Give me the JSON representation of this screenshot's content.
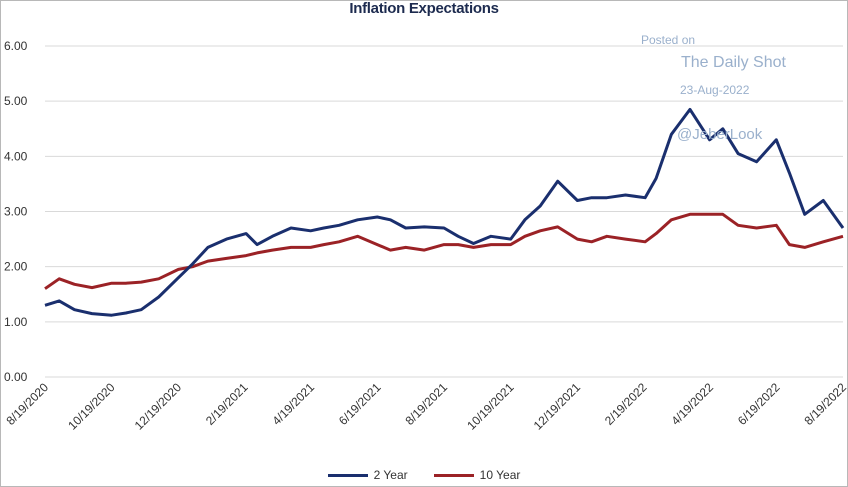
{
  "chart_data": {
    "type": "line",
    "title": "Inflation Expectations",
    "xlabel": "",
    "ylabel": "",
    "ylim": [
      0,
      6
    ],
    "yticks": [
      "0.00",
      "1.00",
      "2.00",
      "3.00",
      "4.00",
      "5.00",
      "6.00"
    ],
    "xticks": [
      "8/19/2020",
      "10/19/2020",
      "12/19/2020",
      "2/19/2021",
      "4/19/2021",
      "6/19/2021",
      "8/19/2021",
      "10/19/2021",
      "12/19/2021",
      "2/19/2022",
      "4/19/2022",
      "6/19/2022",
      "8/19/2022"
    ],
    "grid": true,
    "legend_position": "bottom",
    "series": [
      {
        "name": "2 Year",
        "color": "#1a2f6e",
        "points": [
          [
            "2020-08-19",
            1.3
          ],
          [
            "2020-09-01",
            1.38
          ],
          [
            "2020-09-15",
            1.22
          ],
          [
            "2020-10-01",
            1.15
          ],
          [
            "2020-10-19",
            1.12
          ],
          [
            "2020-11-01",
            1.16
          ],
          [
            "2020-11-15",
            1.22
          ],
          [
            "2020-12-01",
            1.45
          ],
          [
            "2020-12-19",
            1.8
          ],
          [
            "2021-01-01",
            2.05
          ],
          [
            "2021-01-15",
            2.35
          ],
          [
            "2021-02-01",
            2.5
          ],
          [
            "2021-02-19",
            2.6
          ],
          [
            "2021-03-01",
            2.4
          ],
          [
            "2021-03-15",
            2.55
          ],
          [
            "2021-04-01",
            2.7
          ],
          [
            "2021-04-19",
            2.65
          ],
          [
            "2021-05-01",
            2.7
          ],
          [
            "2021-05-15",
            2.75
          ],
          [
            "2021-06-01",
            2.85
          ],
          [
            "2021-06-19",
            2.9
          ],
          [
            "2021-07-01",
            2.85
          ],
          [
            "2021-07-15",
            2.7
          ],
          [
            "2021-08-01",
            2.72
          ],
          [
            "2021-08-19",
            2.7
          ],
          [
            "2021-09-01",
            2.55
          ],
          [
            "2021-09-15",
            2.42
          ],
          [
            "2021-10-01",
            2.55
          ],
          [
            "2021-10-19",
            2.5
          ],
          [
            "2021-11-01",
            2.85
          ],
          [
            "2021-11-15",
            3.1
          ],
          [
            "2021-12-01",
            3.55
          ],
          [
            "2021-12-19",
            3.2
          ],
          [
            "2022-01-01",
            3.25
          ],
          [
            "2022-01-15",
            3.25
          ],
          [
            "2022-02-01",
            3.3
          ],
          [
            "2022-02-19",
            3.25
          ],
          [
            "2022-03-01",
            3.6
          ],
          [
            "2022-03-15",
            4.4
          ],
          [
            "2022-04-01",
            4.85
          ],
          [
            "2022-04-19",
            4.3
          ],
          [
            "2022-05-01",
            4.5
          ],
          [
            "2022-05-15",
            4.05
          ],
          [
            "2022-06-01",
            3.9
          ],
          [
            "2022-06-19",
            4.3
          ],
          [
            "2022-07-01",
            3.7
          ],
          [
            "2022-07-15",
            2.95
          ],
          [
            "2022-08-01",
            3.2
          ],
          [
            "2022-08-19",
            2.7
          ]
        ]
      },
      {
        "name": "10 Year",
        "color": "#9b2226",
        "points": [
          [
            "2020-08-19",
            1.6
          ],
          [
            "2020-09-01",
            1.78
          ],
          [
            "2020-09-15",
            1.68
          ],
          [
            "2020-10-01",
            1.62
          ],
          [
            "2020-10-19",
            1.7
          ],
          [
            "2020-11-01",
            1.7
          ],
          [
            "2020-11-15",
            1.72
          ],
          [
            "2020-12-01",
            1.78
          ],
          [
            "2020-12-19",
            1.95
          ],
          [
            "2021-01-01",
            2.0
          ],
          [
            "2021-01-15",
            2.1
          ],
          [
            "2021-02-01",
            2.15
          ],
          [
            "2021-02-19",
            2.2
          ],
          [
            "2021-03-01",
            2.25
          ],
          [
            "2021-03-15",
            2.3
          ],
          [
            "2021-04-01",
            2.35
          ],
          [
            "2021-04-19",
            2.35
          ],
          [
            "2021-05-01",
            2.4
          ],
          [
            "2021-05-15",
            2.45
          ],
          [
            "2021-06-01",
            2.55
          ],
          [
            "2021-06-19",
            2.4
          ],
          [
            "2021-07-01",
            2.3
          ],
          [
            "2021-07-15",
            2.35
          ],
          [
            "2021-08-01",
            2.3
          ],
          [
            "2021-08-19",
            2.4
          ],
          [
            "2021-09-01",
            2.4
          ],
          [
            "2021-09-15",
            2.35
          ],
          [
            "2021-10-01",
            2.4
          ],
          [
            "2021-10-19",
            2.4
          ],
          [
            "2021-11-01",
            2.55
          ],
          [
            "2021-11-15",
            2.65
          ],
          [
            "2021-12-01",
            2.72
          ],
          [
            "2021-12-19",
            2.5
          ],
          [
            "2022-01-01",
            2.45
          ],
          [
            "2022-01-15",
            2.55
          ],
          [
            "2022-02-01",
            2.5
          ],
          [
            "2022-02-19",
            2.45
          ],
          [
            "2022-03-01",
            2.6
          ],
          [
            "2022-03-15",
            2.85
          ],
          [
            "2022-04-01",
            2.95
          ],
          [
            "2022-04-19",
            2.95
          ],
          [
            "2022-05-01",
            2.95
          ],
          [
            "2022-05-15",
            2.75
          ],
          [
            "2022-06-01",
            2.7
          ],
          [
            "2022-06-19",
            2.75
          ],
          [
            "2022-07-01",
            2.4
          ],
          [
            "2022-07-15",
            2.35
          ],
          [
            "2022-08-01",
            2.45
          ],
          [
            "2022-08-19",
            2.55
          ]
        ]
      }
    ]
  },
  "watermark": {
    "posted": "Posted on",
    "name": "The Daily Shot",
    "date": "23-Aug-2022",
    "handle": "@JeberLook"
  }
}
